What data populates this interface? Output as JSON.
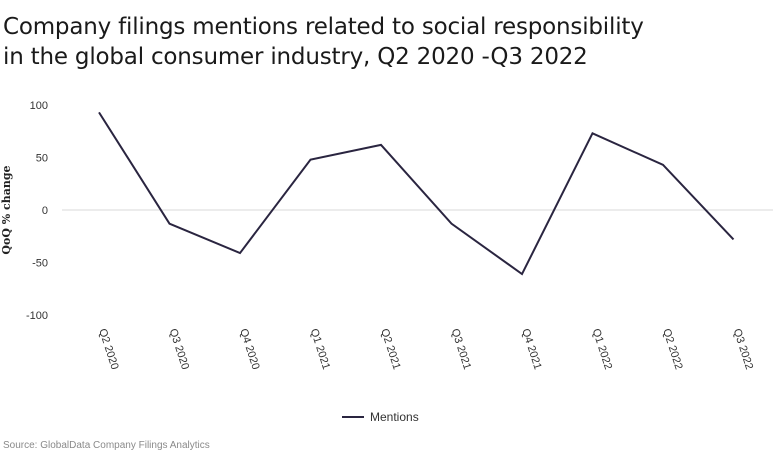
{
  "chart_data": {
    "type": "line",
    "title_lines": [
      "Company filings mentions related to social responsibility",
      "in the global consumer industry, Q2 2020 -Q3 2022"
    ],
    "ylabel": "QoQ % change",
    "xlabel": "",
    "categories": [
      "Q2 2020",
      "Q3 2020",
      "Q4 2020",
      "Q1 2021",
      "Q2 2021",
      "Q3 2021",
      "Q4 2021",
      "Q1 2022",
      "Q2 2022",
      "Q3 2022"
    ],
    "series": [
      {
        "name": "Mentions",
        "color": "#2a2540",
        "values": [
          93,
          -13,
          -41,
          48,
          62,
          -13,
          -61,
          73,
          43,
          -28
        ]
      }
    ],
    "ylim": [
      -100,
      100
    ],
    "yticks": [
      100,
      50,
      0,
      -50,
      -100
    ],
    "grid": false,
    "zero_line": true,
    "legend_position": "bottom"
  },
  "source": "Source: GlobalData Company Filings Analytics"
}
